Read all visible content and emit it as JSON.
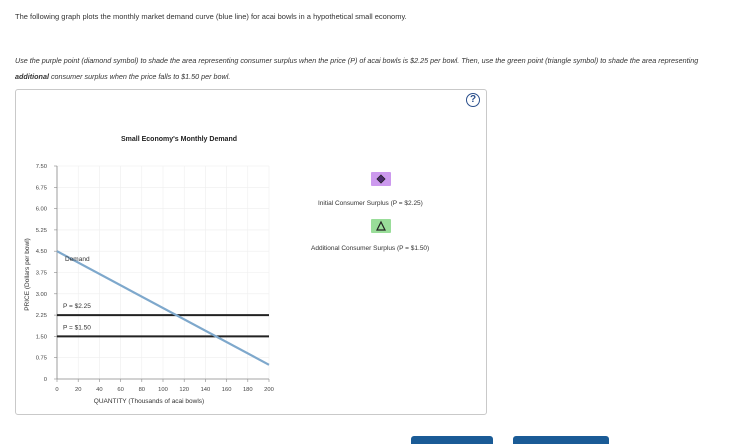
{
  "intro": "The following graph plots the monthly market demand curve (blue line) for acai bowls in a hypothetical small economy.",
  "instructions": {
    "part1": "Use the purple point (diamond symbol) to shade the area representing consumer surplus when the price (P) of acai bowls is $2.25 per bowl. Then, use the green point (triangle symbol) to shade the area representing ",
    "emphasis": "additional",
    "part2": " consumer surplus when the price falls to $1.50 per bowl."
  },
  "help_label": "?",
  "tools": [
    {
      "label": "Initial Consumer Surplus (P = $2.25)",
      "color": "#cc99ee",
      "symbol": "diamond-icon"
    },
    {
      "label": "Additional Consumer Surplus (P = $1.50)",
      "color": "#99dd99",
      "symbol": "triangle-icon"
    }
  ],
  "chart_data": {
    "type": "line",
    "title": "Small Economy's Monthly Demand",
    "xlabel": "QUANTITY (Thousands of acai bowls)",
    "ylabel": "PRICE (Dollars per bowl)",
    "xlim": [
      0,
      200
    ],
    "ylim": [
      0,
      7.5
    ],
    "x_ticks": [
      "0",
      "20",
      "40",
      "60",
      "80",
      "100",
      "120",
      "140",
      "160",
      "180",
      "200"
    ],
    "y_ticks": [
      "0",
      "0.75",
      "1.50",
      "2.25",
      "3.00",
      "3.75",
      "4.50",
      "5.25",
      "6.00",
      "6.75",
      "7.50"
    ],
    "grid": true,
    "series": [
      {
        "name": "Demand",
        "color": "#7ea8cc",
        "x": [
          0,
          200
        ],
        "y": [
          4.5,
          0.5
        ]
      }
    ],
    "price_lines": [
      {
        "label": "P = $2.25",
        "y": 2.25,
        "color": "#222222"
      },
      {
        "label": "P = $1.50",
        "y": 1.5,
        "color": "#222222"
      }
    ]
  }
}
